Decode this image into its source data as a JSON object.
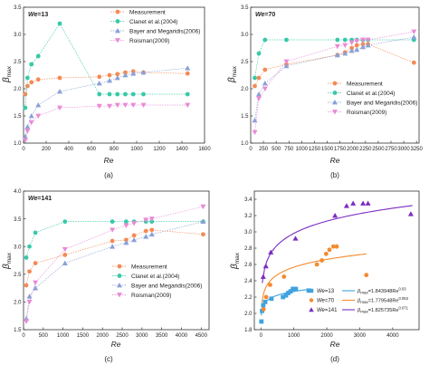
{
  "figure": {
    "colors": {
      "measurement": "#f58a54",
      "clanet": "#37c9a9",
      "bayer": "#8aa0d6",
      "roisman": "#e98ad6",
      "we13": "#3fa3df",
      "we70": "#f58a2e",
      "we141": "#7b2bc2"
    }
  },
  "chart_data": [
    {
      "type": "line",
      "panel_label": "(a)",
      "annotation_base": "We",
      "annotation_value": "=13",
      "xlabel": "Re",
      "ylabel_base": "β",
      "ylabel_sub": "max",
      "xlim": [
        0,
        1600
      ],
      "ylim": [
        1.0,
        3.5
      ],
      "xticks": [
        0,
        200,
        400,
        600,
        800,
        1000,
        1200,
        1400,
        1600
      ],
      "yticks": [
        1.0,
        1.5,
        2.0,
        2.5,
        3.0,
        3.5
      ],
      "xtick_labels": [
        "0",
        "200",
        "400",
        "600",
        "800",
        "1000",
        "1200",
        "1400",
        "1600"
      ],
      "ytick_labels": [
        "1.0",
        "1.5",
        "2.0",
        "2.5",
        "3.0",
        "3.5"
      ],
      "legend_position": "top-right",
      "series": [
        {
          "name": "Measurement",
          "marker": "circle",
          "color": "#f58a54",
          "x": [
            15,
            35,
            70,
            130,
            320,
            670,
            760,
            830,
            900,
            970,
            1060,
            1450
          ],
          "y": [
            1.9,
            2.05,
            2.12,
            2.17,
            2.2,
            2.22,
            2.25,
            2.27,
            2.3,
            2.32,
            2.3,
            2.28
          ]
        },
        {
          "name": "Clanet et al.(2004)",
          "marker": "circle",
          "color": "#37c9a9",
          "x": [
            15,
            35,
            70,
            130,
            320,
            670,
            760,
            830,
            900,
            970,
            1060,
            1450
          ],
          "y": [
            1.65,
            2.2,
            2.45,
            2.6,
            3.2,
            1.9,
            1.9,
            1.9,
            1.9,
            1.9,
            1.9,
            1.9
          ]
        },
        {
          "name": "Bayer and Megaridis(2006)",
          "marker": "triangle",
          "color": "#8aa0d6",
          "x": [
            15,
            35,
            70,
            130,
            320,
            670,
            760,
            830,
            900,
            970,
            1060,
            1450
          ],
          "y": [
            1.12,
            1.3,
            1.5,
            1.7,
            1.95,
            2.1,
            2.15,
            2.2,
            2.25,
            2.28,
            2.3,
            2.38
          ]
        },
        {
          "name": "Roisman(2009)",
          "marker": "triangle-down",
          "color": "#e98ad6",
          "x": [
            15,
            35,
            70,
            130,
            320,
            670,
            760,
            830,
            900,
            970,
            1060,
            1450
          ],
          "y": [
            1.05,
            1.22,
            1.38,
            1.5,
            1.65,
            1.68,
            1.68,
            1.7,
            1.7,
            1.7,
            1.7,
            1.7
          ]
        }
      ]
    },
    {
      "type": "line",
      "panel_label": "(b)",
      "annotation_base": "We",
      "annotation_value": "=70",
      "xlabel": "Re",
      "ylabel_base": "β",
      "ylabel_sub": "max",
      "xlim": [
        0,
        3300
      ],
      "ylim": [
        1.0,
        3.5
      ],
      "xticks": [
        0,
        250,
        500,
        750,
        1000,
        1250,
        1500,
        1750,
        2000,
        2250,
        2500,
        2750,
        3000,
        3250
      ],
      "yticks": [
        1.0,
        1.5,
        2.0,
        2.5,
        3.0,
        3.5
      ],
      "xtick_labels": [
        "0",
        "250",
        "500",
        "750",
        "1000",
        "1250",
        "1500",
        "1750",
        "2000",
        "2250",
        "2500",
        "2750",
        "3000",
        "3250"
      ],
      "ytick_labels": [
        "1.0",
        "1.5",
        "2.0",
        "2.5",
        "3.0",
        "3.5"
      ],
      "legend_position": "bottom-right",
      "series": [
        {
          "name": "Measurement",
          "marker": "circle",
          "color": "#f58a54",
          "x": [
            80,
            160,
            280,
            700,
            1700,
            1850,
            1980,
            2080,
            2200,
            2300,
            3200
          ],
          "y": [
            2.05,
            2.2,
            2.35,
            2.45,
            2.62,
            2.67,
            2.75,
            2.8,
            2.82,
            2.82,
            2.48
          ]
        },
        {
          "name": "Clanet et al.(2004)",
          "marker": "circle",
          "color": "#37c9a9",
          "x": [
            80,
            160,
            280,
            700,
            1700,
            1850,
            1980,
            2080,
            2200,
            2300,
            3200
          ],
          "y": [
            2.2,
            2.65,
            2.9,
            2.9,
            2.9,
            2.9,
            2.9,
            2.9,
            2.9,
            2.9,
            2.9
          ]
        },
        {
          "name": "Bayer and Megaridis(2006)",
          "marker": "triangle",
          "color": "#8aa0d6",
          "x": [
            80,
            160,
            280,
            700,
            1700,
            1850,
            1980,
            2080,
            2200,
            2300,
            3200
          ],
          "y": [
            1.42,
            1.9,
            2.1,
            2.42,
            2.62,
            2.65,
            2.7,
            2.72,
            2.77,
            2.8,
            2.95
          ]
        },
        {
          "name": "Roisman(2009)",
          "marker": "triangle-down",
          "color": "#e98ad6",
          "x": [
            80,
            160,
            280,
            700,
            1700,
            1850,
            1980,
            2080,
            2200,
            2300,
            3200
          ],
          "y": [
            1.2,
            1.82,
            2.0,
            2.5,
            2.78,
            2.8,
            2.85,
            2.88,
            2.9,
            2.9,
            3.05
          ]
        }
      ]
    },
    {
      "type": "line",
      "panel_label": "(c)",
      "annotation_base": "We",
      "annotation_value": "=141",
      "xlabel": "Re",
      "ylabel_base": "β",
      "ylabel_sub": "max",
      "xlim": [
        0,
        4700
      ],
      "ylim": [
        1.5,
        4.0
      ],
      "xticks": [
        0,
        500,
        1000,
        1500,
        2000,
        2500,
        3000,
        3500,
        4000,
        4500
      ],
      "yticks": [
        1.5,
        2.0,
        2.5,
        3.0,
        3.5,
        4.0
      ],
      "xtick_labels": [
        "0",
        "500",
        "1000",
        "1500",
        "2000",
        "2500",
        "3000",
        "3500",
        "4000",
        "4500"
      ],
      "ytick_labels": [
        "1.5",
        "2.0",
        "2.5",
        "3.0",
        "3.5",
        "4.0"
      ],
      "legend_position": "bottom-right",
      "series": [
        {
          "name": "Measurement",
          "marker": "circle",
          "color": "#f58a54",
          "x": [
            70,
            150,
            300,
            1050,
            2250,
            2600,
            2800,
            3100,
            3250,
            4550
          ],
          "y": [
            2.3,
            2.55,
            2.7,
            2.85,
            3.1,
            3.12,
            3.2,
            3.28,
            3.3,
            3.22
          ]
        },
        {
          "name": "Clanet et al.(2004)",
          "marker": "circle",
          "color": "#37c9a9",
          "x": [
            70,
            150,
            300,
            1050,
            2250,
            2600,
            2800,
            3100,
            3250,
            4550
          ],
          "y": [
            2.8,
            3.0,
            3.25,
            3.45,
            3.45,
            3.45,
            3.45,
            3.45,
            3.45,
            3.45
          ]
        },
        {
          "name": "Bayer and Megaridis(2006)",
          "marker": "triangle",
          "color": "#8aa0d6",
          "x": [
            70,
            150,
            300,
            1050,
            2250,
            2600,
            2800,
            3100,
            3250,
            4550
          ],
          "y": [
            1.7,
            2.1,
            2.25,
            2.7,
            3.0,
            3.07,
            3.12,
            3.18,
            3.22,
            3.45
          ]
        },
        {
          "name": "Roisman(2009)",
          "marker": "triangle-down",
          "color": "#e98ad6",
          "x": [
            70,
            150,
            300,
            1050,
            2250,
            2600,
            2800,
            3100,
            3250,
            4550
          ],
          "y": [
            1.65,
            2.0,
            2.35,
            2.95,
            3.3,
            3.38,
            3.42,
            3.48,
            3.5,
            3.72
          ]
        }
      ]
    },
    {
      "type": "scatter",
      "panel_label": "(d)",
      "xlabel": "Re",
      "ylabel_base": "β",
      "ylabel_sub": "max",
      "xlim": [
        -200,
        4800
      ],
      "ylim": [
        1.8,
        3.5
      ],
      "xticks": [
        0,
        1000,
        2000,
        3000,
        4000
      ],
      "yticks": [
        1.8,
        2.0,
        2.2,
        2.4,
        2.6,
        2.8,
        3.0,
        3.2,
        3.4
      ],
      "xtick_labels": [
        "0",
        "1000",
        "2000",
        "3000",
        "4000"
      ],
      "ytick_labels": [
        "1.8",
        "2.0",
        "2.2",
        "2.4",
        "2.6",
        "2.8",
        "3.0",
        "3.2",
        "3.4"
      ],
      "legend_position": "bottom-right",
      "series": [
        {
          "name_base": "We",
          "name_value": "=13",
          "marker": "square",
          "color": "#3fa3df",
          "x": [
            15,
            35,
            70,
            130,
            320,
            670,
            760,
            830,
            900,
            970,
            1060,
            1450
          ],
          "y": [
            1.9,
            2.03,
            2.1,
            2.14,
            2.18,
            2.2,
            2.22,
            2.25,
            2.27,
            2.3,
            2.3,
            2.28
          ]
        },
        {
          "name_base": "We",
          "name_value": "=70",
          "marker": "circle",
          "color": "#f58a2e",
          "x": [
            80,
            160,
            280,
            700,
            1700,
            1850,
            1980,
            2080,
            2200,
            2300,
            3200
          ],
          "y": [
            2.05,
            2.2,
            2.35,
            2.45,
            2.6,
            2.65,
            2.73,
            2.78,
            2.82,
            2.82,
            2.47
          ]
        },
        {
          "name_base": "We",
          "name_value": "=141",
          "marker": "triangle",
          "color": "#7b2bc2",
          "x": [
            70,
            150,
            300,
            1050,
            2250,
            2600,
            2800,
            3100,
            3250,
            4550
          ],
          "y": [
            2.45,
            2.58,
            2.75,
            2.92,
            3.2,
            3.32,
            3.35,
            3.35,
            3.35,
            3.22
          ]
        }
      ],
      "fits": [
        {
          "color": "#3fa3df",
          "coef": 1.843948,
          "exp": 0.03,
          "x_range": [
            10,
            1500
          ],
          "label_base": "β",
          "label_sub": "max",
          "label_value": "=1.843948Re",
          "label_sup": "0.03"
        },
        {
          "color": "#f58a2e",
          "coef": 1.779548,
          "exp": 0.053,
          "x_range": [
            30,
            3200
          ],
          "label_base": "β",
          "label_sub": "max",
          "label_value": "=1.779548Re",
          "label_sup": "0.053"
        },
        {
          "color": "#7b2bc2",
          "coef": 1.825735,
          "exp": 0.071,
          "x_range": [
            40,
            4600
          ],
          "label_base": "β",
          "label_sub": "max",
          "label_value": "=1.825735Re",
          "label_sup": "0.071"
        }
      ]
    }
  ]
}
